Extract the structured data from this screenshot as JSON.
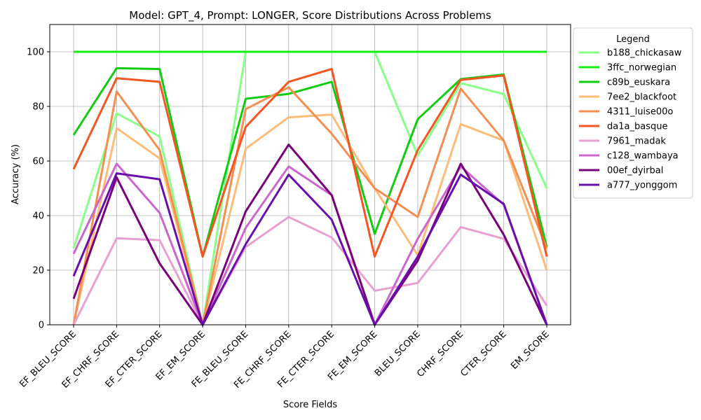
{
  "chart_data": {
    "type": "line",
    "title": "Model: GPT_4, Prompt: LONGER, Score Distributions Across Problems",
    "xlabel": "Score Fields",
    "ylabel": "Accuracy (%)",
    "ylim": [
      0,
      110
    ],
    "yticks": [
      0,
      20,
      40,
      60,
      80,
      100
    ],
    "grid": true,
    "legend_title": "Legend",
    "legend_position": "outside-right",
    "categories": [
      "EF_BLEU_SCORE",
      "EF_CHRF_SCORE",
      "EF_CTER_SCORE",
      "EF_EM_SCORE",
      "FE_BLEU_SCORE",
      "FE_CHRF_SCORE",
      "FE_CTER_SCORE",
      "FE_EM_SCORE",
      "BLEU_SCORE",
      "CHRF_SCORE",
      "CTER_SCORE",
      "EM_SCORE"
    ],
    "series": [
      {
        "name": "b188_chickasaw",
        "color": "#88ff88",
        "values": [
          28,
          77.5,
          69,
          0,
          100,
          100,
          100,
          100,
          62,
          88.5,
          84.5,
          50
        ]
      },
      {
        "name": "3ffc_norwegian",
        "color": "#11ee11",
        "values": [
          100,
          100,
          100,
          100,
          100,
          100,
          100,
          100,
          100,
          100,
          100,
          100
        ]
      },
      {
        "name": "c89b_euskara",
        "color": "#11cc11",
        "values": [
          69.5,
          94,
          93.7,
          25,
          82.8,
          84.6,
          89,
          33.3,
          75.3,
          90,
          91.7,
          28.5
        ]
      },
      {
        "name": "7ee2_blackfoot",
        "color": "#ffbb77",
        "values": [
          0,
          72,
          61,
          0,
          64.5,
          76,
          77,
          50,
          25.5,
          73.5,
          67.5,
          20
        ]
      },
      {
        "name": "4311_luise00o",
        "color": "#f58f50",
        "values": [
          0,
          85.5,
          64,
          0,
          79,
          87,
          70,
          50,
          39.5,
          86.5,
          67.5,
          28
        ]
      },
      {
        "name": "da1a_basque",
        "color": "#f55522",
        "values": [
          57,
          90.3,
          89,
          25,
          72.5,
          89,
          93.7,
          25,
          64,
          89.7,
          91.3,
          25
        ]
      },
      {
        "name": "7961_madak",
        "color": "#e8a0d0",
        "values": [
          0,
          31.7,
          31,
          0,
          28.5,
          39.5,
          32,
          12.5,
          15.3,
          35.8,
          31.5,
          7
        ]
      },
      {
        "name": "c128_wambaya",
        "color": "#cc66cc",
        "values": [
          26,
          59,
          41,
          0,
          35.5,
          58,
          47.5,
          0,
          31.5,
          58,
          44,
          0
        ]
      },
      {
        "name": "00ef_dyirbal",
        "color": "#7a007a",
        "values": [
          9.5,
          54,
          22.5,
          0,
          41.5,
          66,
          47.5,
          0,
          23.5,
          59,
          33,
          0
        ]
      },
      {
        "name": "a777_yonggom",
        "color": "#6a0dad",
        "values": [
          17.8,
          55.5,
          53.3,
          0,
          29.5,
          55,
          38.5,
          0,
          25,
          55,
          44.3,
          0
        ]
      }
    ]
  }
}
